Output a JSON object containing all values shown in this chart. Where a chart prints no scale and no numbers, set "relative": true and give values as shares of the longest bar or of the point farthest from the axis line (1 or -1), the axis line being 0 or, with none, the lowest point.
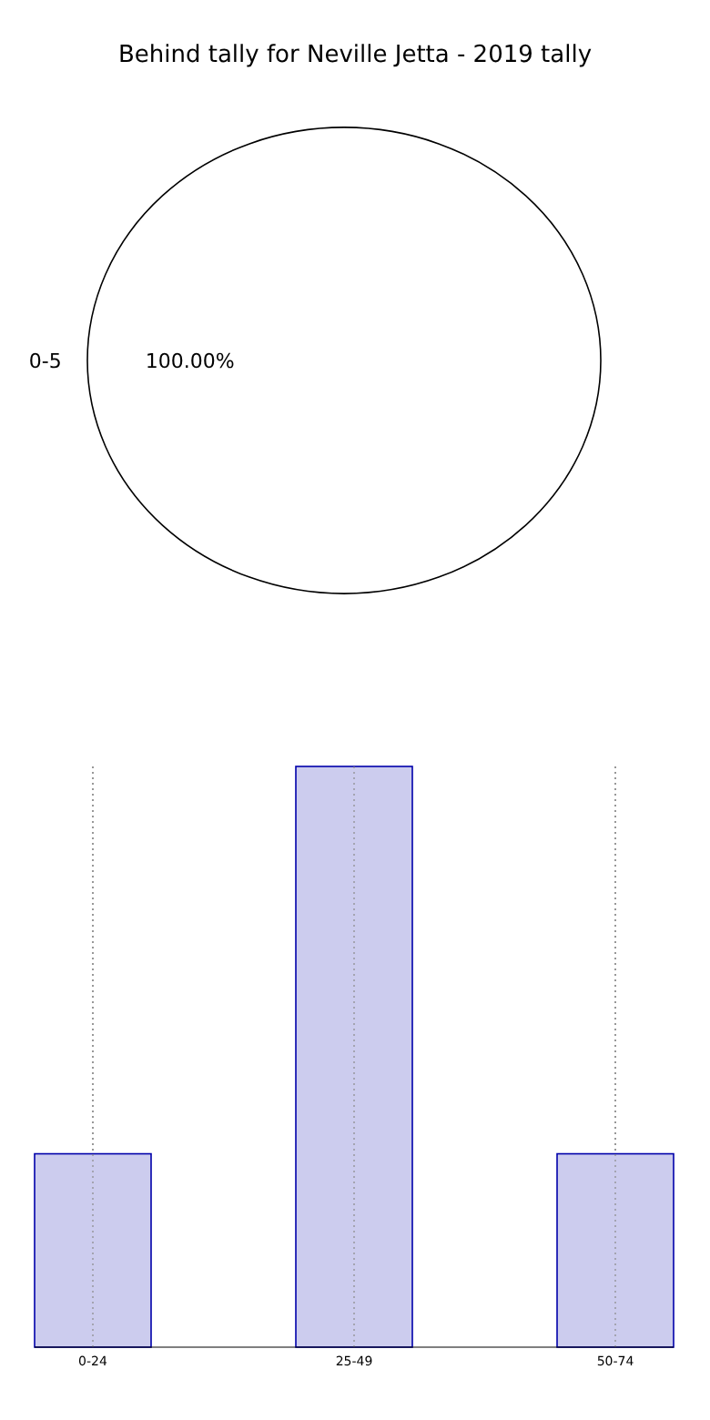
{
  "chart_data": [
    {
      "type": "pie",
      "title": "Behind tally for Neville Jetta - 2019 tally",
      "categories": [
        "0-5"
      ],
      "values": [
        100
      ],
      "colors": [
        "#ffffff"
      ],
      "value_labels": [
        "100.00%"
      ]
    },
    {
      "type": "bar",
      "relative": true,
      "categories": [
        "0-24",
        "25-49",
        "50-74"
      ],
      "values": [
        0.333,
        1,
        0.333
      ],
      "color": "#ccccee",
      "grid": "x"
    }
  ]
}
